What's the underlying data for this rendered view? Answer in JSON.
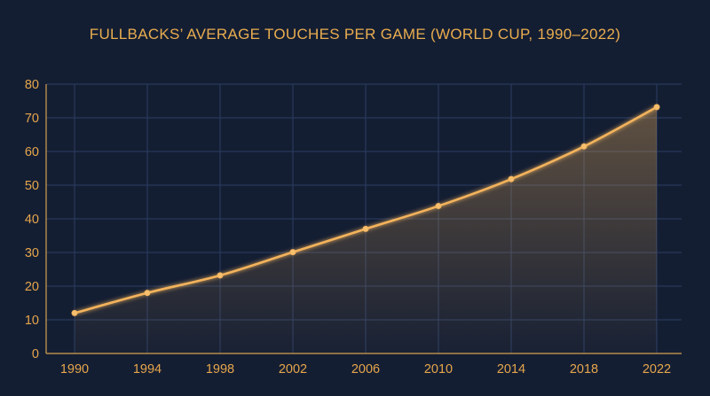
{
  "chart_data": {
    "type": "line",
    "title": "FULLBACKS’ AVERAGE TOUCHES PER GAME (WORLD CUP, 1990–2022)",
    "xlabel": "",
    "ylabel": "",
    "x": [
      "1990",
      "1994",
      "1998",
      "2002",
      "2006",
      "2010",
      "2014",
      "2018",
      "2022"
    ],
    "series": [
      {
        "values": [
          12,
          18,
          23.2,
          30.1,
          37,
          43.8,
          51.8,
          61.5,
          73.2
        ]
      }
    ],
    "ylim": [
      0,
      80
    ],
    "yticks": [
      "0",
      "10",
      "20",
      "30",
      "40",
      "50",
      "60",
      "70",
      "80"
    ],
    "grid": true,
    "area_fill": true,
    "legend": "none",
    "colors": {
      "background": "#141e33",
      "line": "#f3b35c",
      "text": "#e6a64b",
      "grid": "#2b3d63"
    }
  }
}
